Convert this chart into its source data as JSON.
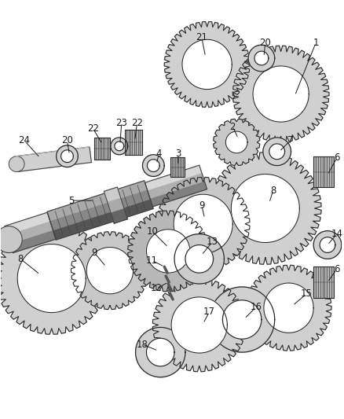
{
  "background_color": "#ffffff",
  "fig_width": 4.38,
  "fig_height": 5.33,
  "dpi": 100,
  "line_color": "#2a2a2a",
  "gear_fill": "#d8d8d8",
  "gear_stroke": "#2a2a2a",
  "shaft_fill": "#c0c0c0",
  "shaft_dark": "#555555",
  "shaft_light": "#e8e8e8",
  "label_fontsize": 8.5,
  "label_color": "#1a1a1a"
}
